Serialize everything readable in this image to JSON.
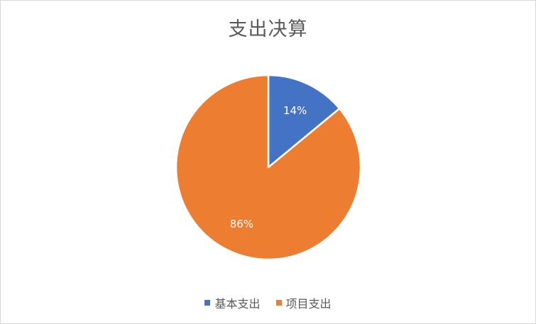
{
  "chart_data": {
    "type": "pie",
    "title": "支出决算",
    "categories": [
      "基本支出",
      "项目支出"
    ],
    "values": [
      14,
      86
    ],
    "data_labels": [
      "14%",
      "86%"
    ],
    "colors": [
      "#4472C4",
      "#ED7D31"
    ],
    "legend_position": "bottom"
  }
}
